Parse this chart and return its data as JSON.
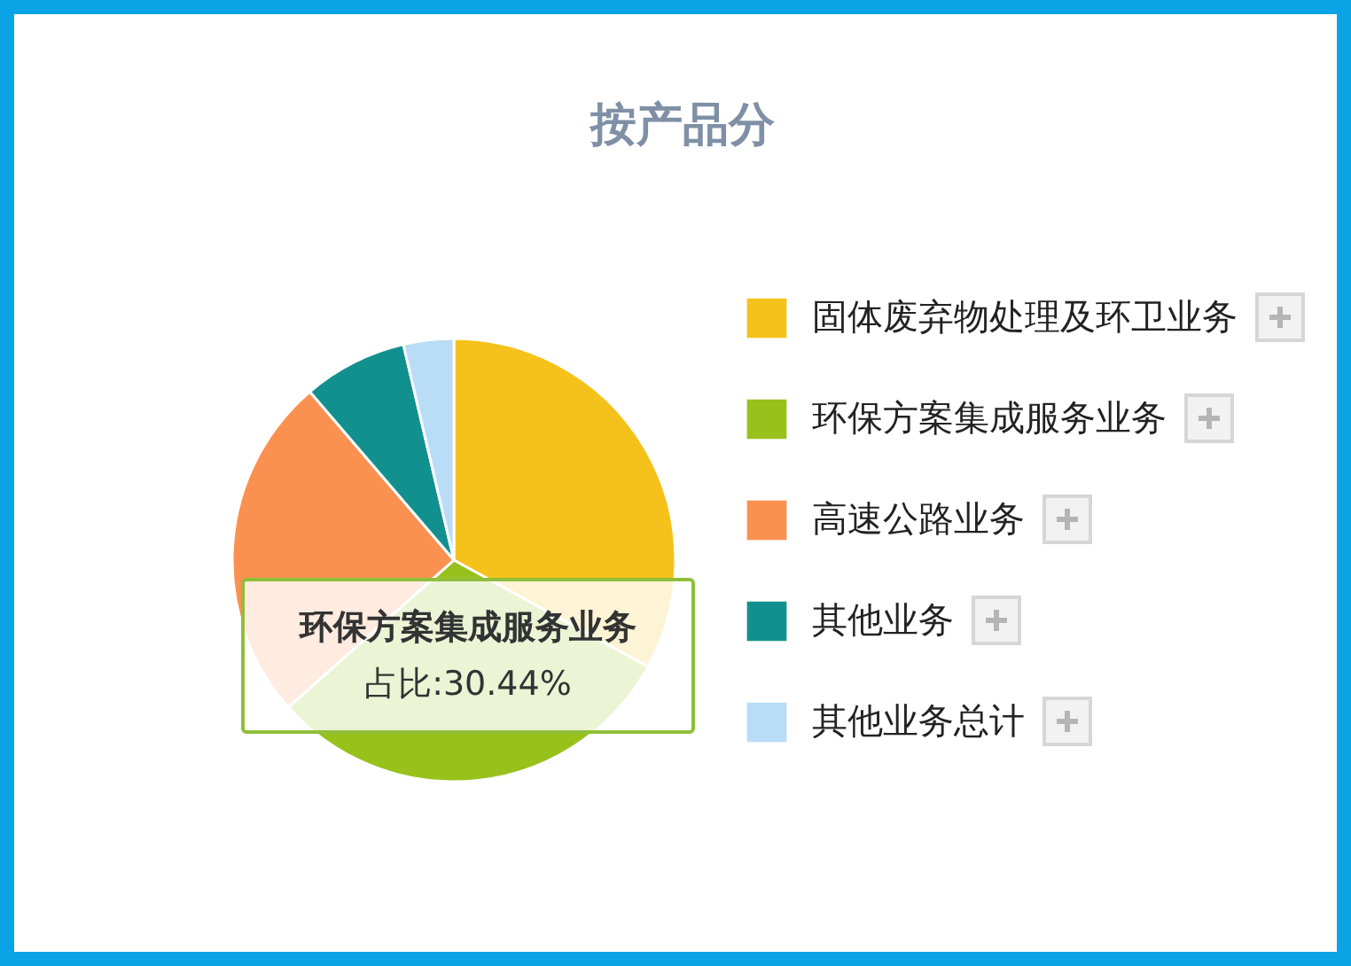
{
  "chart_data": {
    "type": "pie",
    "title": "按产品分",
    "categories": [
      "固体废弃物处理及环卫业务",
      "环保方案集成服务业务",
      "高速公路业务",
      "其他业务",
      "其他业务总计"
    ],
    "values": [
      33.0,
      30.44,
      25.3,
      7.6,
      3.66
    ],
    "colors": [
      "#f5c21b",
      "#98c11c",
      "#fb9150",
      "#12908e",
      "#b9dcf7"
    ],
    "value_labels": [
      null,
      "占比:30.44%",
      null,
      null,
      null
    ],
    "legend": "right"
  }
}
